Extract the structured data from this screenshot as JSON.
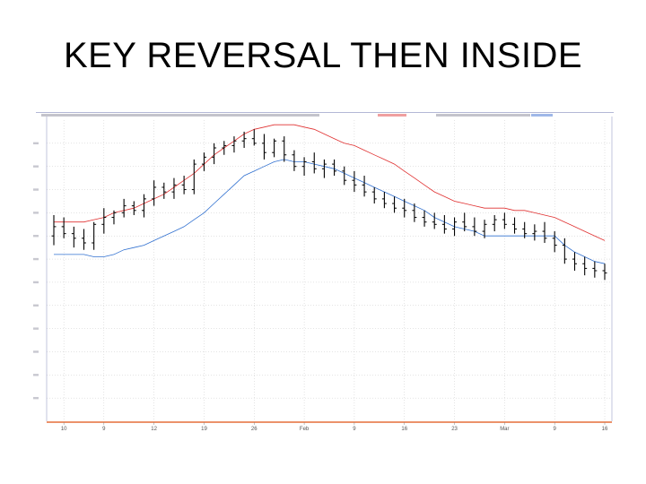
{
  "slide": {
    "title": "KEY REVERSAL THEN INSIDE"
  },
  "chart_data": {
    "type": "line",
    "title": "",
    "xlabel": "",
    "ylabel": "",
    "grid": true,
    "x_tick_labels": [
      "10",
      "9",
      "12",
      "19",
      "26",
      "Feb",
      "9",
      "16",
      "23",
      "Mar",
      "9",
      "16"
    ],
    "x_tick_index": [
      1,
      5,
      10,
      15,
      20,
      25,
      30,
      35,
      40,
      45,
      50,
      55
    ],
    "n_bars": 56,
    "ylim": [
      0,
      13
    ],
    "colors": {
      "bars": "#000000",
      "upper_band": "#e03030",
      "middle_line": "#3070d0",
      "axis_line": "#e05010",
      "grid": "#c8c8c8",
      "frame": "#9aa0c8"
    },
    "ohlc": [
      [
        8.0,
        8.9,
        7.6,
        8.4
      ],
      [
        8.4,
        8.8,
        7.9,
        8.1
      ],
      [
        8.1,
        8.4,
        7.5,
        7.9
      ],
      [
        7.9,
        8.3,
        7.4,
        7.7
      ],
      [
        7.7,
        8.6,
        7.4,
        8.5
      ],
      [
        8.5,
        9.2,
        8.1,
        8.8
      ],
      [
        8.8,
        9.1,
        8.5,
        9.0
      ],
      [
        9.0,
        9.6,
        8.8,
        9.3
      ],
      [
        9.3,
        9.5,
        8.9,
        9.1
      ],
      [
        9.1,
        9.8,
        8.8,
        9.6
      ],
      [
        9.6,
        10.4,
        9.3,
        10.1
      ],
      [
        10.1,
        10.3,
        9.6,
        9.9
      ],
      [
        9.9,
        10.5,
        9.6,
        10.2
      ],
      [
        10.2,
        10.6,
        9.8,
        10.0
      ],
      [
        10.0,
        11.3,
        9.8,
        11.1
      ],
      [
        11.1,
        11.6,
        10.8,
        11.4
      ],
      [
        11.4,
        12.0,
        11.1,
        11.8
      ],
      [
        11.8,
        12.1,
        11.5,
        11.9
      ],
      [
        11.9,
        12.3,
        11.6,
        12.1
      ],
      [
        12.1,
        12.5,
        11.8,
        12.2
      ],
      [
        12.2,
        12.6,
        11.9,
        12.0
      ],
      [
        12.0,
        12.4,
        11.3,
        11.6
      ],
      [
        11.6,
        12.2,
        11.4,
        12.1
      ],
      [
        12.1,
        12.3,
        11.2,
        11.5
      ],
      [
        11.5,
        11.7,
        10.8,
        11.0
      ],
      [
        11.0,
        11.4,
        10.6,
        11.2
      ],
      [
        11.2,
        11.6,
        10.7,
        10.9
      ],
      [
        10.9,
        11.3,
        10.5,
        11.1
      ],
      [
        11.1,
        11.3,
        10.6,
        10.8
      ],
      [
        10.8,
        11.0,
        10.2,
        10.4
      ],
      [
        10.4,
        10.8,
        9.9,
        10.2
      ],
      [
        10.2,
        10.6,
        9.7,
        9.9
      ],
      [
        9.9,
        10.1,
        9.4,
        9.6
      ],
      [
        9.6,
        9.9,
        9.2,
        9.4
      ],
      [
        9.4,
        9.7,
        9.0,
        9.2
      ],
      [
        9.2,
        9.6,
        8.8,
        9.1
      ],
      [
        9.1,
        9.4,
        8.6,
        8.8
      ],
      [
        8.8,
        9.1,
        8.4,
        8.6
      ],
      [
        8.6,
        9.0,
        8.3,
        8.5
      ],
      [
        8.5,
        8.9,
        8.1,
        8.3
      ],
      [
        8.3,
        8.8,
        8.0,
        8.6
      ],
      [
        8.6,
        9.0,
        8.2,
        8.4
      ],
      [
        8.4,
        8.8,
        8.0,
        8.2
      ],
      [
        8.2,
        8.7,
        7.9,
        8.5
      ],
      [
        8.5,
        8.9,
        8.2,
        8.7
      ],
      [
        8.7,
        9.0,
        8.3,
        8.5
      ],
      [
        8.5,
        8.8,
        8.1,
        8.3
      ],
      [
        8.3,
        8.6,
        7.9,
        8.1
      ],
      [
        8.1,
        8.5,
        7.8,
        8.2
      ],
      [
        8.2,
        8.6,
        7.7,
        7.9
      ],
      [
        7.9,
        8.2,
        7.3,
        7.6
      ],
      [
        7.6,
        7.9,
        6.8,
        7.0
      ],
      [
        7.0,
        7.3,
        6.5,
        6.8
      ],
      [
        6.8,
        7.1,
        6.3,
        6.6
      ],
      [
        6.6,
        6.9,
        6.2,
        6.5
      ],
      [
        6.5,
        6.8,
        6.1,
        6.4
      ]
    ],
    "series": [
      {
        "values": [
          8.6,
          8.6,
          8.6,
          8.6,
          8.7,
          8.8,
          9.0,
          9.1,
          9.2,
          9.4,
          9.6,
          9.8,
          10.1,
          10.4,
          10.7,
          11.1,
          11.5,
          11.8,
          12.1,
          12.4,
          12.6,
          12.7,
          12.8,
          12.8,
          12.8,
          12.7,
          12.6,
          12.4,
          12.2,
          12.0,
          11.9,
          11.7,
          11.5,
          11.3,
          11.1,
          10.8,
          10.5,
          10.2,
          9.9,
          9.7,
          9.5,
          9.4,
          9.3,
          9.2,
          9.2,
          9.2,
          9.1,
          9.1,
          9.0,
          8.9,
          8.8,
          8.6,
          8.4,
          8.2,
          8.0,
          7.8
        ]
      },
      {
        "values": [
          7.2,
          7.2,
          7.2,
          7.2,
          7.1,
          7.1,
          7.2,
          7.4,
          7.5,
          7.6,
          7.8,
          8.0,
          8.2,
          8.4,
          8.7,
          9.0,
          9.4,
          9.8,
          10.2,
          10.6,
          10.8,
          11.0,
          11.2,
          11.3,
          11.2,
          11.2,
          11.1,
          11.0,
          10.9,
          10.7,
          10.5,
          10.3,
          10.1,
          9.9,
          9.7,
          9.5,
          9.3,
          9.1,
          8.8,
          8.6,
          8.4,
          8.3,
          8.2,
          8.0,
          8.0,
          8.0,
          8.0,
          8.0,
          8.0,
          8.0,
          8.0,
          7.6,
          7.3,
          7.1,
          6.9,
          6.8
        ]
      }
    ]
  }
}
